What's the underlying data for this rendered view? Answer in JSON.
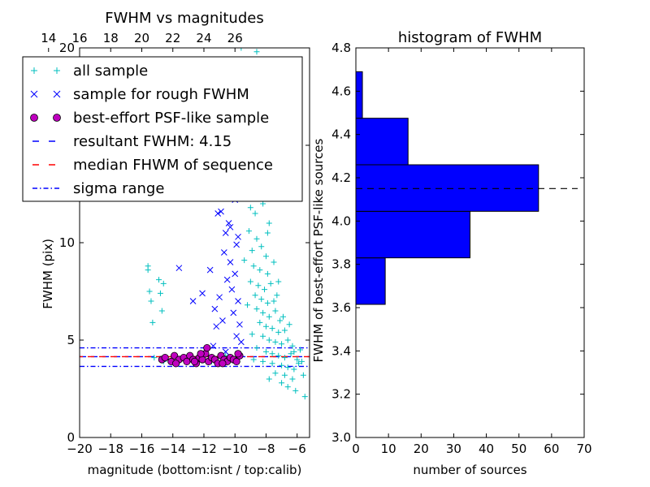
{
  "chart_data": [
    {
      "type": "scatter",
      "title": "FWHM vs magnitudes",
      "xlabel": "magnitude (bottom:isnt / top:calib)",
      "ylabel": "FWHM (pix)",
      "xlim": [
        -20,
        -5.2
      ],
      "ylim": [
        0,
        20
      ],
      "x_ticks": [
        -20,
        -18,
        -16,
        -14,
        -12,
        -10,
        -8,
        -6
      ],
      "y_ticks": [
        0,
        5,
        10,
        15,
        20
      ],
      "top_axis": {
        "label_offset": 36,
        "ticks": [
          14,
          16,
          18,
          20,
          22,
          24,
          26
        ]
      },
      "legend": {
        "placement": "upper-left"
      },
      "series": [
        {
          "name": "all sample",
          "marker": "plus",
          "color": "#00bfbf",
          "points": [
            [
              -15.6,
              8.8
            ],
            [
              -15.6,
              8.6
            ],
            [
              -15.5,
              7.5
            ],
            [
              -15.4,
              7.0
            ],
            [
              -14.9,
              8.1
            ],
            [
              -14.8,
              7.4
            ],
            [
              -14.7,
              6.5
            ],
            [
              -14.6,
              7.9
            ],
            [
              -15.3,
              5.9
            ],
            [
              -15.2,
              4.1
            ],
            [
              -14.6,
              3.9
            ],
            [
              -13.0,
              4.1
            ],
            [
              -12.8,
              4.0
            ],
            [
              -11.5,
              3.9
            ],
            [
              -10.6,
              4.2
            ],
            [
              -9.6,
              20.0
            ],
            [
              -8.6,
              19.8
            ],
            [
              -9.0,
              15.6
            ],
            [
              -8.4,
              15.3
            ],
            [
              -8.9,
              14.2
            ],
            [
              -9.2,
              13.0
            ],
            [
              -8.4,
              12.4
            ],
            [
              -9.0,
              11.8
            ],
            [
              -8.7,
              11.5
            ],
            [
              -8.2,
              12.0
            ],
            [
              -9.1,
              10.6
            ],
            [
              -8.6,
              10.2
            ],
            [
              -8.9,
              9.6
            ],
            [
              -8.3,
              9.8
            ],
            [
              -8.0,
              9.3
            ],
            [
              -8.8,
              8.8
            ],
            [
              -8.4,
              8.6
            ],
            [
              -7.9,
              8.4
            ],
            [
              -9.0,
              8.0
            ],
            [
              -8.5,
              7.8
            ],
            [
              -8.1,
              7.6
            ],
            [
              -7.7,
              7.9
            ],
            [
              -8.7,
              7.3
            ],
            [
              -8.3,
              7.1
            ],
            [
              -7.9,
              6.9
            ],
            [
              -7.5,
              7.0
            ],
            [
              -8.6,
              6.6
            ],
            [
              -8.2,
              6.4
            ],
            [
              -7.8,
              6.2
            ],
            [
              -7.4,
              6.5
            ],
            [
              -7.1,
              6.0
            ],
            [
              -8.4,
              5.9
            ],
            [
              -8.0,
              5.7
            ],
            [
              -7.6,
              5.6
            ],
            [
              -7.2,
              5.4
            ],
            [
              -6.8,
              5.5
            ],
            [
              -8.2,
              5.2
            ],
            [
              -7.8,
              5.0
            ],
            [
              -7.4,
              4.9
            ],
            [
              -7.0,
              4.8
            ],
            [
              -6.6,
              5.0
            ],
            [
              -6.3,
              4.7
            ],
            [
              -8.6,
              4.6
            ],
            [
              -8.0,
              4.4
            ],
            [
              -7.6,
              4.3
            ],
            [
              -7.2,
              4.2
            ],
            [
              -6.8,
              4.1
            ],
            [
              -6.4,
              4.3
            ],
            [
              -6.0,
              4.0
            ],
            [
              -8.8,
              4.0
            ],
            [
              -8.2,
              3.9
            ],
            [
              -7.6,
              3.8
            ],
            [
              -7.0,
              3.7
            ],
            [
              -6.6,
              3.6
            ],
            [
              -6.2,
              3.5
            ],
            [
              -5.9,
              3.8
            ],
            [
              -7.4,
              3.3
            ],
            [
              -6.8,
              3.2
            ],
            [
              -6.3,
              3.0
            ],
            [
              -7.0,
              2.8
            ],
            [
              -6.6,
              2.6
            ],
            [
              -6.1,
              2.4
            ],
            [
              -5.5,
              2.1
            ],
            [
              -7.8,
              3.0
            ],
            [
              -5.8,
              4.5
            ],
            [
              -5.6,
              3.2
            ],
            [
              -8.5,
              14.8
            ],
            [
              -8.1,
              13.6
            ],
            [
              -7.8,
              11.0
            ],
            [
              -7.5,
              9.0
            ],
            [
              -7.2,
              8.0
            ],
            [
              -9.3,
              12.3
            ],
            [
              -9.4,
              9.1
            ],
            [
              -9.2,
              6.8
            ],
            [
              -8.9,
              5.3
            ],
            [
              -7.9,
              10.5
            ],
            [
              -7.3,
              7.3
            ],
            [
              -6.9,
              6.2
            ],
            [
              -6.5,
              5.8
            ],
            [
              -6.2,
              4.4
            ],
            [
              -5.7,
              3.9
            ],
            [
              -8.1,
              12.8
            ],
            [
              -8.8,
              13.2
            ]
          ]
        },
        {
          "name": "sample for rough FWHM",
          "marker": "x",
          "color": "#0000ff",
          "points": [
            [
              -13.6,
              8.7
            ],
            [
              -12.7,
              7.0
            ],
            [
              -12.1,
              7.4
            ],
            [
              -11.6,
              8.6
            ],
            [
              -11.3,
              6.6
            ],
            [
              -11.2,
              5.7
            ],
            [
              -11.0,
              7.2
            ],
            [
              -11.1,
              11.5
            ],
            [
              -10.9,
              11.6
            ],
            [
              -10.7,
              9.5
            ],
            [
              -10.6,
              10.5
            ],
            [
              -10.5,
              8.1
            ],
            [
              -10.3,
              9.0
            ],
            [
              -10.2,
              7.6
            ],
            [
              -10.1,
              6.4
            ],
            [
              -10.0,
              8.4
            ],
            [
              -9.9,
              9.9
            ],
            [
              -9.8,
              10.3
            ],
            [
              -9.8,
              7.0
            ],
            [
              -9.7,
              5.8
            ],
            [
              -9.6,
              4.9
            ],
            [
              -10.4,
              11.0
            ],
            [
              -10.8,
              6.0
            ],
            [
              -11.4,
              4.7
            ],
            [
              -10.6,
              4.4
            ],
            [
              -9.9,
              5.2
            ],
            [
              -10.3,
              10.8
            ],
            [
              -10.0,
              12.2
            ]
          ]
        },
        {
          "name": "best-effort PSF-like sample",
          "marker": "circle",
          "color": "#bf00bf",
          "points": [
            [
              -14.7,
              4.0
            ],
            [
              -14.5,
              4.1
            ],
            [
              -14.1,
              3.9
            ],
            [
              -13.9,
              4.2
            ],
            [
              -13.6,
              4.0
            ],
            [
              -13.3,
              4.1
            ],
            [
              -13.1,
              3.9
            ],
            [
              -12.9,
              4.2
            ],
            [
              -12.7,
              4.0
            ],
            [
              -12.5,
              3.8
            ],
            [
              -12.3,
              4.1
            ],
            [
              -12.1,
              4.0
            ],
            [
              -11.9,
              4.3
            ],
            [
              -11.7,
              3.9
            ],
            [
              -11.5,
              4.1
            ],
            [
              -11.3,
              4.0
            ],
            [
              -11.1,
              3.8
            ],
            [
              -10.9,
              4.2
            ],
            [
              -10.7,
              4.0
            ],
            [
              -10.5,
              3.9
            ],
            [
              -10.3,
              4.1
            ],
            [
              -10.1,
              4.0
            ],
            [
              -9.9,
              3.9
            ],
            [
              -9.7,
              4.2
            ],
            [
              -11.8,
              4.6
            ],
            [
              -12.6,
              3.9
            ],
            [
              -13.8,
              3.8
            ],
            [
              -10.8,
              3.8
            ],
            [
              -9.8,
              4.3
            ],
            [
              -12.2,
              4.3
            ]
          ]
        }
      ],
      "lines": [
        {
          "name": "resultant FWHM: 4.15",
          "value": 4.15,
          "style": "dashed",
          "color": "#0000ff"
        },
        {
          "name": "median FHWM of sequence",
          "value": 4.15,
          "style": "dashed",
          "color": "#ff0000"
        },
        {
          "name": "sigma range",
          "value": 4.6,
          "style": "dashdot",
          "color": "#0000ff"
        },
        {
          "name": "",
          "value": 3.65,
          "style": "dashdot",
          "color": "#0000ff"
        }
      ]
    },
    {
      "type": "bar",
      "orientation": "horizontal",
      "title": "histogram of FWHM",
      "xlabel": "number of sources",
      "ylabel": "FWHM of best-effort PSF-like sources",
      "xlim": [
        0,
        70
      ],
      "ylim": [
        3.0,
        4.8
      ],
      "x_ticks": [
        0,
        10,
        20,
        30,
        40,
        50,
        60,
        70
      ],
      "y_ticks": [
        3.0,
        3.2,
        3.4,
        3.6,
        3.8,
        4.0,
        4.2,
        4.4,
        4.6,
        4.8
      ],
      "color": "#0000ff",
      "bins": [
        {
          "low": 3.615,
          "high": 3.83,
          "count": 9
        },
        {
          "low": 3.83,
          "high": 4.045,
          "count": 35
        },
        {
          "low": 4.045,
          "high": 4.26,
          "count": 56
        },
        {
          "low": 4.26,
          "high": 4.475,
          "count": 16
        },
        {
          "low": 4.475,
          "high": 4.69,
          "count": 2
        }
      ],
      "reference_line": {
        "value": 4.15,
        "style": "dashed",
        "color": "#000000",
        "x_to": 68
      }
    }
  ]
}
